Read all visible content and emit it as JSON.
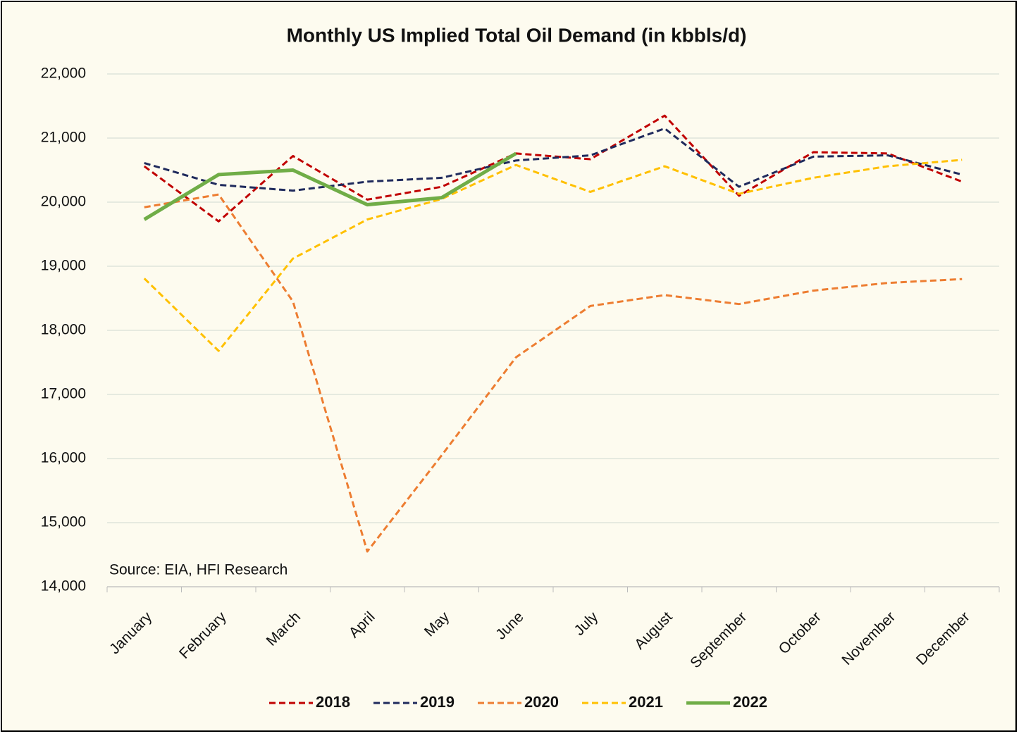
{
  "chart_data": {
    "type": "line",
    "title": "Monthly US Implied Total Oil Demand (in kbbls/d)",
    "annotation": "Source: EIA, HFI Research",
    "categories": [
      "January",
      "February",
      "March",
      "April",
      "May",
      "June",
      "July",
      "August",
      "September",
      "October",
      "November",
      "December"
    ],
    "ylim": [
      14000,
      22000
    ],
    "yticks": [
      {
        "value": 14000,
        "label": "14,000"
      },
      {
        "value": 15000,
        "label": "15,000"
      },
      {
        "value": 16000,
        "label": "16,000"
      },
      {
        "value": 17000,
        "label": "17,000"
      },
      {
        "value": 18000,
        "label": "18,000"
      },
      {
        "value": 19000,
        "label": "19,000"
      },
      {
        "value": 20000,
        "label": "20,000"
      },
      {
        "value": 21000,
        "label": "21,000"
      },
      {
        "value": 22000,
        "label": "22,000"
      }
    ],
    "grid": true,
    "legend": "bottom",
    "series": [
      {
        "name": "2018",
        "color": "#c00000",
        "style": "dashed",
        "values": [
          20560,
          19700,
          20720,
          20040,
          20240,
          20760,
          20670,
          21350,
          20100,
          20780,
          20760,
          20320
        ]
      },
      {
        "name": "2019",
        "color": "#1f2a5c",
        "style": "dashed",
        "values": [
          20610,
          20270,
          20180,
          20320,
          20380,
          20650,
          20730,
          21150,
          20240,
          20710,
          20730,
          20430
        ]
      },
      {
        "name": "2020",
        "color": "#ed7d31",
        "style": "dashed",
        "values": [
          19920,
          20120,
          18450,
          14550,
          16050,
          17580,
          18380,
          18550,
          18410,
          18620,
          18740,
          18800
        ]
      },
      {
        "name": "2021",
        "color": "#ffc000",
        "style": "dashed",
        "values": [
          18810,
          17680,
          19120,
          19730,
          20050,
          20580,
          20160,
          20560,
          20130,
          20380,
          20560,
          20660
        ]
      },
      {
        "name": "2022",
        "color": "#70ad47",
        "style": "solid",
        "values": [
          19730,
          20430,
          20500,
          19960,
          20070,
          20760,
          null,
          null,
          null,
          null,
          null,
          null
        ]
      }
    ]
  }
}
